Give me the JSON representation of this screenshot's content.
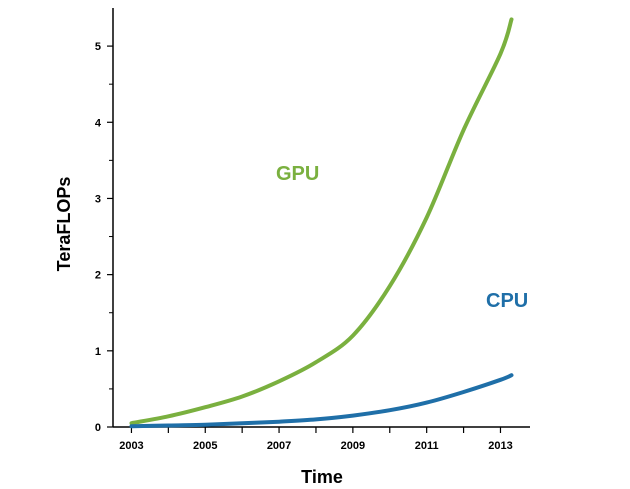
{
  "chart_data": {
    "type": "line",
    "title": "",
    "xlabel": "Time",
    "ylabel": "TeraFLOPs",
    "xlim": [
      2002.5,
      2013.8
    ],
    "ylim": [
      0,
      5.5
    ],
    "x_ticks": [
      2003,
      2005,
      2007,
      2009,
      2011,
      2013
    ],
    "x_tick_labels": [
      "2003",
      "2005",
      "2007",
      "2009",
      "2011",
      "2013"
    ],
    "y_ticks": [
      0,
      1,
      2,
      3,
      4,
      5
    ],
    "y_tick_labels": [
      "0",
      "1",
      "2",
      "3",
      "4",
      "5"
    ],
    "grid": false,
    "legend": "none",
    "series": [
      {
        "name": "GPU",
        "color": "#7ab03f",
        "x": [
          2003,
          2004,
          2005,
          2006,
          2007,
          2008,
          2009,
          2010,
          2011,
          2012,
          2013,
          2013.3
        ],
        "y": [
          0.05,
          0.14,
          0.26,
          0.4,
          0.6,
          0.85,
          1.2,
          1.85,
          2.75,
          3.9,
          4.9,
          5.35
        ]
      },
      {
        "name": "CPU",
        "color": "#1f6fa8",
        "x": [
          2003,
          2004,
          2005,
          2006,
          2007,
          2008,
          2009,
          2010,
          2011,
          2012,
          2013,
          2013.3
        ],
        "y": [
          0.01,
          0.02,
          0.03,
          0.05,
          0.07,
          0.1,
          0.15,
          0.22,
          0.32,
          0.46,
          0.62,
          0.68
        ]
      }
    ]
  }
}
